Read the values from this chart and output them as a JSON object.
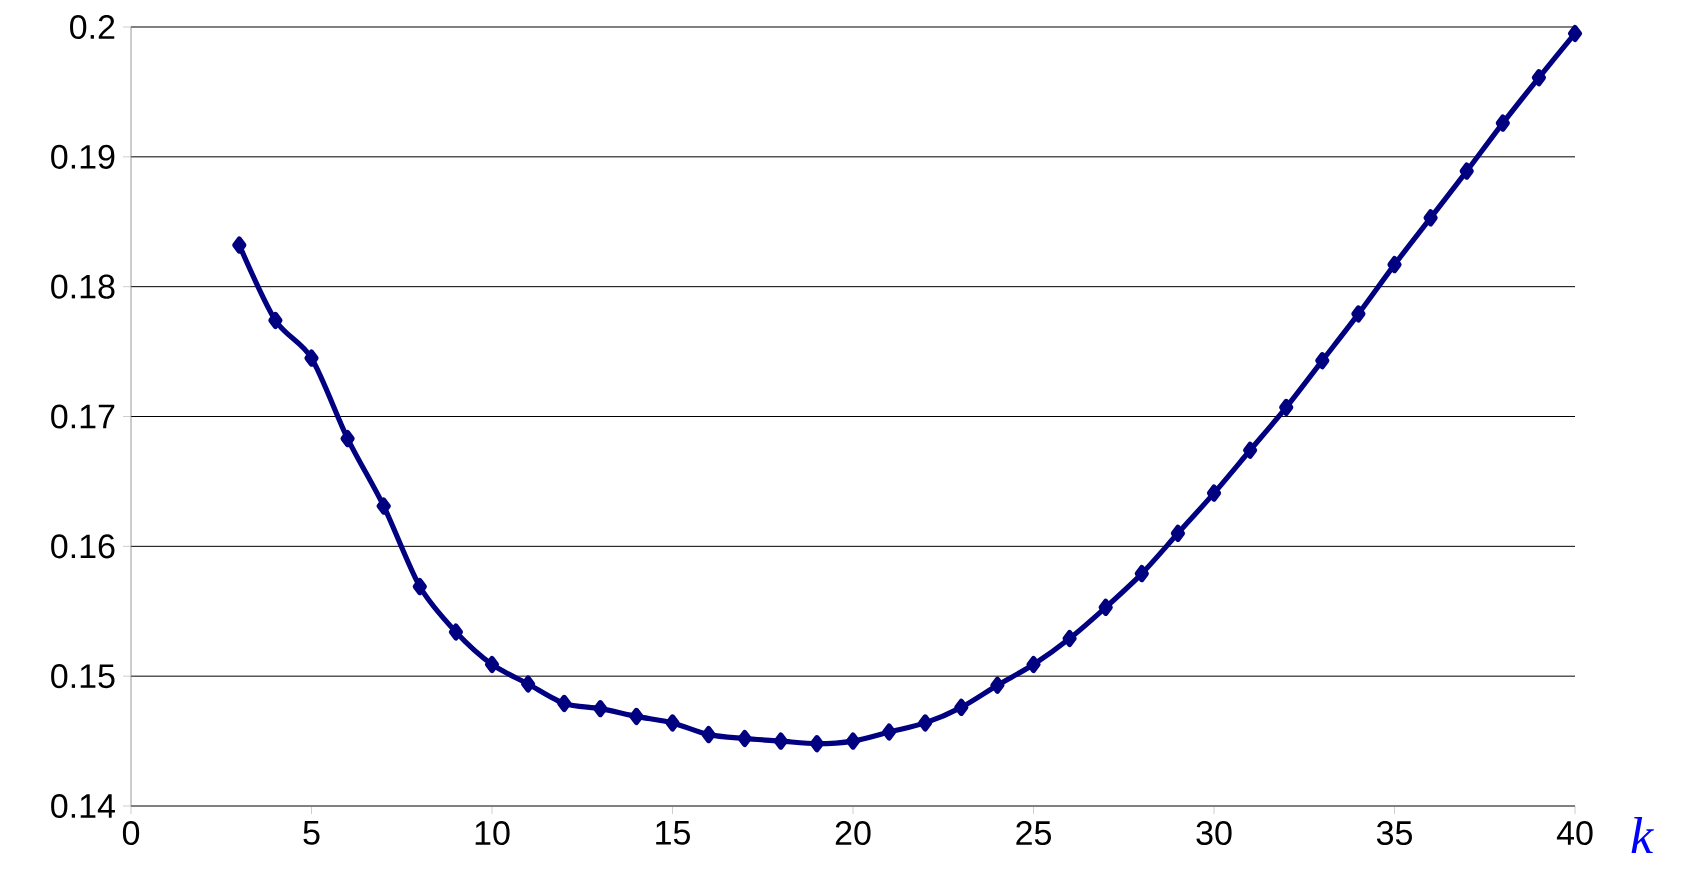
{
  "chart_data": {
    "type": "line",
    "xlabel": "k",
    "x": [
      3,
      4,
      5,
      6,
      7,
      8,
      9,
      10,
      11,
      12,
      13,
      14,
      15,
      16,
      17,
      18,
      19,
      20,
      21,
      22,
      23,
      24,
      25,
      26,
      27,
      28,
      29,
      30,
      31,
      32,
      33,
      34,
      35,
      36,
      37,
      38,
      39,
      40
    ],
    "series": [
      {
        "color": "#000080",
        "values": [
          0.1832,
          0.1774,
          0.1745,
          0.1683,
          0.1631,
          0.1569,
          0.1534,
          0.1509,
          0.1494,
          0.1479,
          0.1475,
          0.1469,
          0.1464,
          0.1455,
          0.1452,
          0.145,
          0.1448,
          0.145,
          0.1457,
          0.1464,
          0.1476,
          0.1493,
          0.1509,
          0.1529,
          0.1553,
          0.1579,
          0.161,
          0.1641,
          0.1674,
          0.1707,
          0.1743,
          0.1779,
          0.1817,
          0.1853,
          0.1889,
          0.1926,
          0.1961,
          0.1995
        ]
      }
    ],
    "xlim": [
      0,
      40
    ],
    "xticks": [
      0,
      5,
      10,
      15,
      20,
      25,
      30,
      35,
      40
    ],
    "ylim": [
      0.14,
      0.2
    ],
    "yticks": [
      0.14,
      0.15,
      0.16,
      0.17,
      0.18,
      0.19,
      0.2
    ],
    "grid": "y",
    "marker": "diamond",
    "line_style": "solid"
  }
}
